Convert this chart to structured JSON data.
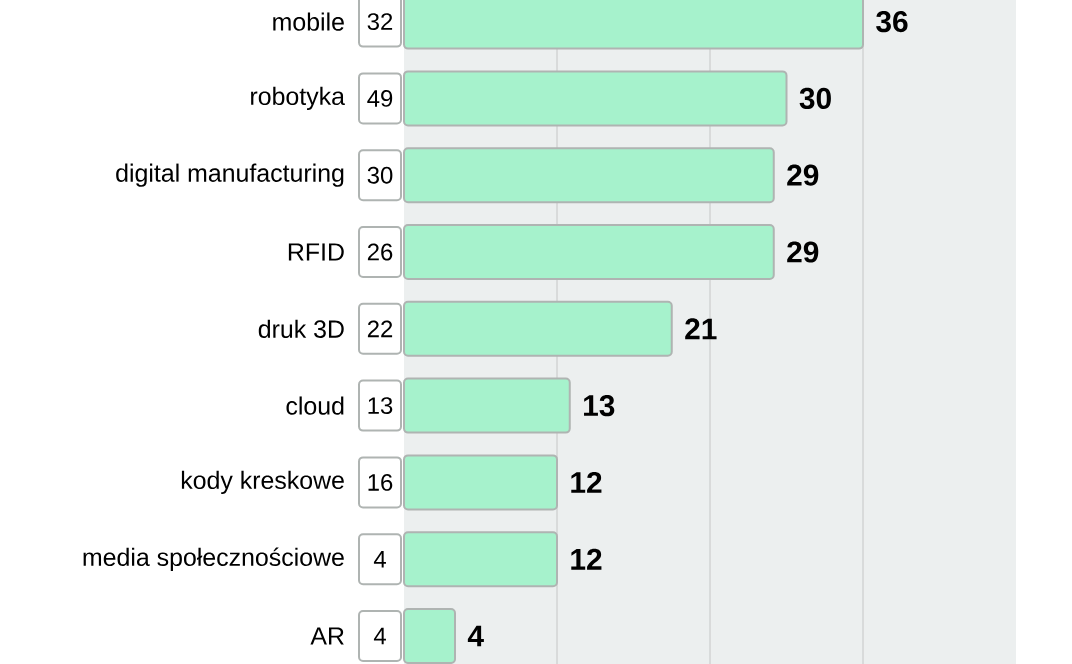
{
  "chart_data": {
    "type": "bar",
    "orientation": "horizontal",
    "categories": [
      "mobile",
      "robotyka",
      "digital manufacturing",
      "RFID",
      "druk 3D",
      "cloud",
      "kody kreskowe",
      "media społecznościowe",
      "AR"
    ],
    "values": [
      36,
      30,
      29,
      29,
      21,
      13,
      12,
      12,
      4
    ],
    "color": "#a6f2cc",
    "data_labels": true,
    "grid": "x",
    "xlim": [
      0,
      48
    ],
    "xticks": [
      {
        "value": 12,
        "label": null
      },
      {
        "value": 24,
        "label": null
      },
      {
        "value": 36,
        "label": null
      }
    ],
    "tick_labels": "y",
    "annotations": [
      {
        "text": "32",
        "y": "mobile"
      },
      {
        "text": "49",
        "y": "robotyka"
      },
      {
        "text": "30",
        "y": "digital manufacturing"
      },
      {
        "text": "26",
        "y": "RFID"
      },
      {
        "text": "22",
        "y": "druk 3D"
      },
      {
        "text": "13",
        "y": "cloud"
      },
      {
        "text": "16",
        "y": "kody kreskowe"
      },
      {
        "text": "4",
        "y": "media społecznościowe"
      },
      {
        "text": "4",
        "y": "AR"
      }
    ]
  }
}
